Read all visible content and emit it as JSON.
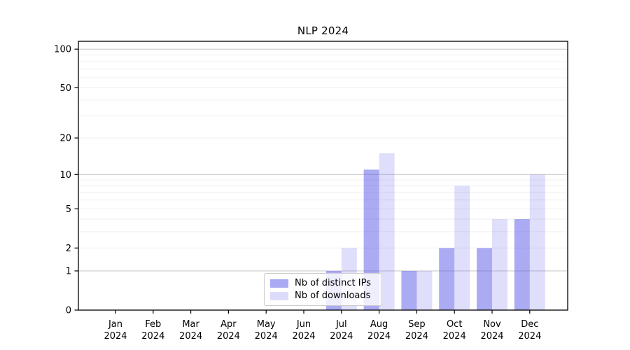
{
  "title": "NLP 2024",
  "chart_data": {
    "type": "bar",
    "title": "NLP 2024",
    "x_months": [
      "Jan",
      "Feb",
      "Mar",
      "Apr",
      "May",
      "Jun",
      "Jul",
      "Aug",
      "Sep",
      "Oct",
      "Nov",
      "Dec"
    ],
    "x_year": "2024",
    "series": [
      {
        "name": "Nb of distinct IPs",
        "values": [
          0,
          0,
          0,
          0,
          0,
          0,
          1,
          11,
          1,
          2,
          2,
          4
        ],
        "fill": "rgba(68,68,230,0.45)",
        "legend_color": "#a9a9f3"
      },
      {
        "name": "Nb of downloads",
        "values": [
          0,
          0,
          0,
          0,
          0,
          0,
          2,
          15,
          1,
          8,
          4,
          10
        ],
        "fill": "rgba(68,68,230,0.17)",
        "legend_color": "#dcdcfa"
      }
    ],
    "yscale": "log1p",
    "ylim": [
      0,
      115
    ],
    "yticks": [
      0,
      1,
      2,
      5,
      10,
      20,
      50,
      100
    ],
    "yticks_minor": [
      3,
      4,
      6,
      7,
      8,
      9,
      30,
      40,
      60,
      70,
      80,
      90
    ],
    "major_gridlines": [
      1,
      10,
      100
    ],
    "grid": true,
    "legend_position": "lower center",
    "colors": {
      "axis": "#000000",
      "major_grid": "#c6c6c6",
      "minor_grid": "#efefef",
      "background": "#ffffff"
    }
  }
}
